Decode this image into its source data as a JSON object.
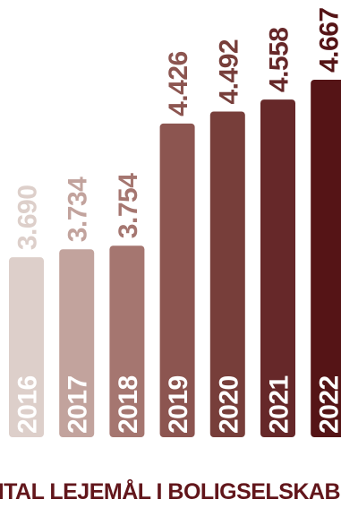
{
  "chart_data": {
    "type": "bar",
    "title": "ANTAL LEJEMÅL I BOLIGSELSKABET",
    "categories": [
      "2016",
      "2017",
      "2018",
      "2019",
      "2020",
      "2021",
      "2022"
    ],
    "values": [
      3690,
      3734,
      3754,
      4426,
      4492,
      4558,
      4667
    ],
    "value_labels": [
      "3.690",
      "3.734",
      "3.754",
      "4.426",
      "4.492",
      "4.558",
      "4.667"
    ],
    "bar_colors": [
      "#ddcfca",
      "#c2a39d",
      "#a57670",
      "#8c5550",
      "#773e3a",
      "#662829",
      "#551416"
    ],
    "year_label_color": "#ffffff",
    "title_color": "#62161b",
    "ylim": [
      0,
      4667
    ],
    "grid": false,
    "legend": "none"
  }
}
